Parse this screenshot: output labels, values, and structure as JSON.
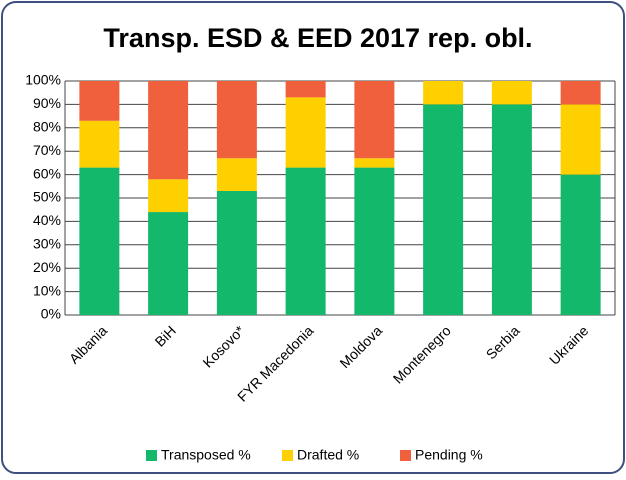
{
  "chart_data": {
    "type": "stacked_bar",
    "title": "Transp. ESD & EED 2017 rep. obl.",
    "categories": [
      "Albania",
      "BiH",
      "Kosovo*",
      "FYR Macedonia",
      "Moldova",
      "Montenegro",
      "Serbia",
      "Ukraine"
    ],
    "series": [
      {
        "name": "Transposed %",
        "color": "#13b86b",
        "values": [
          63,
          44,
          53,
          63,
          63,
          90,
          90,
          60
        ]
      },
      {
        "name": "Drafted %",
        "color": "#ffd000",
        "values": [
          20,
          14,
          14,
          30,
          4,
          10,
          10,
          30
        ]
      },
      {
        "name": "Pending %",
        "color": "#f0603c",
        "values": [
          17,
          42,
          33,
          7,
          33,
          0,
          0,
          10
        ]
      }
    ],
    "ylim": [
      0,
      100
    ],
    "yticks": [
      {
        "value": 0,
        "label": "0%"
      },
      {
        "value": 10,
        "label": "10%"
      },
      {
        "value": 20,
        "label": "20%"
      },
      {
        "value": 30,
        "label": "30%"
      },
      {
        "value": 40,
        "label": "40%"
      },
      {
        "value": 50,
        "label": "50%"
      },
      {
        "value": 60,
        "label": "60%"
      },
      {
        "value": 70,
        "label": "70%"
      },
      {
        "value": 80,
        "label": "80%"
      },
      {
        "value": 90,
        "label": "90%"
      },
      {
        "value": 100,
        "label": "100%"
      }
    ],
    "grid": true
  }
}
